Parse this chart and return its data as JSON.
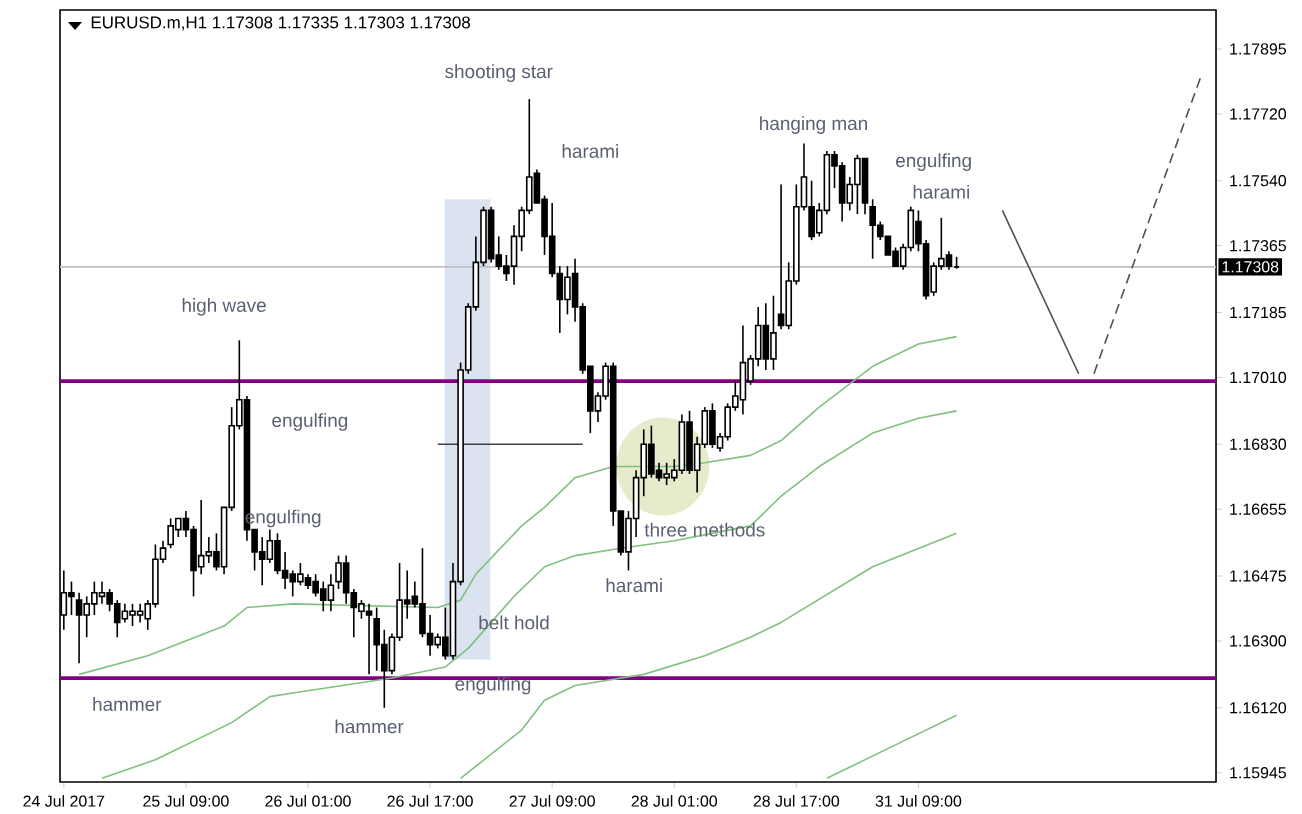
{
  "chart_data": {
    "type": "candlestick",
    "title": "EURUSD.m,H1 1.17308 1.17335 1.17303 1.17308",
    "categories": [
      "24 Jul 2017",
      null,
      null,
      null,
      null,
      null,
      null,
      null,
      null,
      null,
      null,
      null,
      null,
      null,
      null,
      null,
      "25 Jul 09:00",
      null,
      null,
      null,
      null,
      null,
      null,
      null,
      null,
      null,
      null,
      null,
      null,
      null,
      null,
      null,
      "26 Jul 01:00",
      null,
      null,
      null,
      null,
      null,
      null,
      null,
      null,
      null,
      null,
      null,
      null,
      null,
      null,
      null,
      "26 Jul 17:00",
      null,
      null,
      null,
      null,
      null,
      null,
      null,
      null,
      null,
      null,
      null,
      null,
      null,
      null,
      null,
      "27 Jul 09:00",
      null,
      null,
      null,
      null,
      null,
      null,
      null,
      null,
      null,
      null,
      null,
      null,
      null,
      null,
      null,
      "28 Jul 01:00",
      null,
      null,
      null,
      null,
      null,
      null,
      null,
      null,
      null,
      null,
      null,
      null,
      null,
      null,
      null,
      "28 Jul 17:00",
      null,
      null,
      null,
      null,
      null,
      null,
      null,
      null,
      null,
      null,
      null,
      null,
      null,
      null,
      null,
      "31 Jul 09:00",
      null,
      null,
      null,
      null,
      null,
      null,
      null,
      null,
      null,
      null,
      null,
      null,
      null,
      null,
      null,
      null,
      null,
      null,
      null,
      null,
      null,
      null,
      null,
      null,
      null,
      null,
      null,
      null,
      null,
      null,
      null,
      null,
      null,
      null,
      null,
      null,
      null
    ],
    "ohlc": [
      [
        1.1637,
        1.1649,
        1.1633,
        1.1643
      ],
      [
        1.1643,
        1.1646,
        1.1637,
        1.1642
      ],
      [
        1.1641,
        1.1643,
        1.1624,
        1.1637
      ],
      [
        1.1637,
        1.1642,
        1.1631,
        1.164
      ],
      [
        1.164,
        1.1646,
        1.1637,
        1.1643
      ],
      [
        1.1642,
        1.1646,
        1.164,
        1.1643
      ],
      [
        1.1643,
        1.1644,
        1.1638,
        1.164
      ],
      [
        1.164,
        1.1641,
        1.1631,
        1.1635
      ],
      [
        1.1636,
        1.164,
        1.1635,
        1.1638
      ],
      [
        1.1637,
        1.164,
        1.1634,
        1.1638
      ],
      [
        1.1637,
        1.164,
        1.1635,
        1.1638
      ],
      [
        1.1636,
        1.1641,
        1.1633,
        1.164
      ],
      [
        1.164,
        1.1656,
        1.1639,
        1.1652
      ],
      [
        1.1652,
        1.1657,
        1.1651,
        1.1655
      ],
      [
        1.1656,
        1.1663,
        1.1655,
        1.1661
      ],
      [
        1.166,
        1.1663,
        1.1658,
        1.1663
      ],
      [
        1.1663,
        1.1665,
        1.1658,
        1.166
      ],
      [
        1.166,
        1.1661,
        1.1642,
        1.1649
      ],
      [
        1.165,
        1.1668,
        1.1648,
        1.1653
      ],
      [
        1.1653,
        1.1658,
        1.1651,
        1.1654
      ],
      [
        1.1654,
        1.1659,
        1.1649,
        1.165
      ],
      [
        1.165,
        1.1666,
        1.1648,
        1.1666
      ],
      [
        1.1666,
        1.1693,
        1.1665,
        1.1688
      ],
      [
        1.1688,
        1.1711,
        1.1687,
        1.1695
      ],
      [
        1.1695,
        1.1696,
        1.1657,
        1.166
      ],
      [
        1.166,
        1.166,
        1.1649,
        1.1654
      ],
      [
        1.1654,
        1.1658,
        1.1645,
        1.1652
      ],
      [
        1.1652,
        1.166,
        1.1651,
        1.1657
      ],
      [
        1.1657,
        1.1659,
        1.1648,
        1.1649
      ],
      [
        1.1649,
        1.1654,
        1.1644,
        1.1647
      ],
      [
        1.1648,
        1.1649,
        1.1642,
        1.1646
      ],
      [
        1.1646,
        1.1651,
        1.1645,
        1.1648
      ],
      [
        1.1647,
        1.1648,
        1.1644,
        1.1645
      ],
      [
        1.1646,
        1.1648,
        1.1642,
        1.1643
      ],
      [
        1.1644,
        1.1646,
        1.1638,
        1.1641
      ],
      [
        1.1641,
        1.1648,
        1.1638,
        1.1645
      ],
      [
        1.1646,
        1.1653,
        1.1644,
        1.1651
      ],
      [
        1.1651,
        1.1653,
        1.164,
        1.1643
      ],
      [
        1.1643,
        1.1644,
        1.1631,
        1.1639
      ],
      [
        1.1638,
        1.1641,
        1.1636,
        1.164
      ],
      [
        1.1638,
        1.164,
        1.1621,
        1.1637
      ],
      [
        1.1636,
        1.1639,
        1.1622,
        1.1629
      ],
      [
        1.1629,
        1.1633,
        1.1612,
        1.1622
      ],
      [
        1.1622,
        1.1632,
        1.1621,
        1.1631
      ],
      [
        1.1631,
        1.1651,
        1.163,
        1.1641
      ],
      [
        1.1641,
        1.1649,
        1.1636,
        1.164
      ],
      [
        1.1642,
        1.1646,
        1.1639,
        1.164
      ],
      [
        1.164,
        1.1655,
        1.1631,
        1.1632
      ],
      [
        1.1632,
        1.1637,
        1.1626,
        1.1629
      ],
      [
        1.1629,
        1.1632,
        1.1628,
        1.1631
      ],
      [
        1.1631,
        1.1639,
        1.1625,
        1.1626
      ],
      [
        1.1626,
        1.1651,
        1.1625,
        1.1646
      ],
      [
        1.1646,
        1.1705,
        1.1645,
        1.1703
      ],
      [
        1.1703,
        1.1721,
        1.1702,
        1.172
      ],
      [
        1.172,
        1.1739,
        1.1719,
        1.1732
      ],
      [
        1.1732,
        1.1747,
        1.1731,
        1.1746
      ],
      [
        1.1746,
        1.1747,
        1.1732,
        1.1733
      ],
      [
        1.1734,
        1.1739,
        1.173,
        1.1731
      ],
      [
        1.1731,
        1.1734,
        1.1727,
        1.1729
      ],
      [
        1.1731,
        1.1742,
        1.1726,
        1.1739
      ],
      [
        1.1739,
        1.1747,
        1.1735,
        1.1746
      ],
      [
        1.1746,
        1.1776,
        1.1745,
        1.1755
      ],
      [
        1.1756,
        1.1757,
        1.1748,
        1.1748
      ],
      [
        1.1749,
        1.175,
        1.1734,
        1.1739
      ],
      [
        1.1739,
        1.1748,
        1.1728,
        1.1729
      ],
      [
        1.1729,
        1.1731,
        1.1713,
        1.1722
      ],
      [
        1.1722,
        1.1731,
        1.1718,
        1.1728
      ],
      [
        1.1729,
        1.1733,
        1.1716,
        1.172
      ],
      [
        1.172,
        1.1721,
        1.1702,
        1.1703
      ],
      [
        1.1704,
        1.1704,
        1.1686,
        1.1692
      ],
      [
        1.1692,
        1.1697,
        1.1689,
        1.1696
      ],
      [
        1.1696,
        1.1705,
        1.1695,
        1.1704
      ],
      [
        1.1704,
        1.1705,
        1.1661,
        1.1665
      ],
      [
        1.1665,
        1.1665,
        1.1653,
        1.1654
      ],
      [
        1.1654,
        1.1665,
        1.1649,
        1.1663
      ],
      [
        1.1663,
        1.1676,
        1.1658,
        1.1674
      ],
      [
        1.1674,
        1.1687,
        1.1669,
        1.1683
      ],
      [
        1.1683,
        1.1688,
        1.1674,
        1.1675
      ],
      [
        1.1676,
        1.1678,
        1.1673,
        1.1674
      ],
      [
        1.1674,
        1.1678,
        1.1672,
        1.1675
      ],
      [
        1.1674,
        1.1679,
        1.1673,
        1.1676
      ],
      [
        1.1676,
        1.1691,
        1.1675,
        1.1689
      ],
      [
        1.1689,
        1.1692,
        1.1675,
        1.1676
      ],
      [
        1.1676,
        1.1685,
        1.167,
        1.1683
      ],
      [
        1.1683,
        1.1693,
        1.1682,
        1.1692
      ],
      [
        1.1692,
        1.1694,
        1.1682,
        1.1683
      ],
      [
        1.1682,
        1.1686,
        1.1681,
        1.1685
      ],
      [
        1.1685,
        1.1694,
        1.1684,
        1.1693
      ],
      [
        1.1693,
        1.17,
        1.1692,
        1.1696
      ],
      [
        1.1695,
        1.1715,
        1.1691,
        1.1705
      ],
      [
        1.17,
        1.1707,
        1.1699,
        1.1706
      ],
      [
        1.1706,
        1.172,
        1.1704,
        1.1715
      ],
      [
        1.1715,
        1.1721,
        1.1703,
        1.1706
      ],
      [
        1.1706,
        1.1723,
        1.1703,
        1.1713
      ],
      [
        1.1718,
        1.1753,
        1.1714,
        1.1715
      ],
      [
        1.1715,
        1.1732,
        1.1714,
        1.1727
      ],
      [
        1.1727,
        1.1753,
        1.1726,
        1.1747
      ],
      [
        1.1747,
        1.1764,
        1.1746,
        1.1755
      ],
      [
        1.1747,
        1.1754,
        1.1738,
        1.1739
      ],
      [
        1.174,
        1.1748,
        1.1739,
        1.1746
      ],
      [
        1.1746,
        1.1762,
        1.1745,
        1.1761
      ],
      [
        1.1761,
        1.1762,
        1.1752,
        1.1758
      ],
      [
        1.1758,
        1.1759,
        1.1743,
        1.1748
      ],
      [
        1.1748,
        1.1755,
        1.1746,
        1.1753
      ],
      [
        1.1753,
        1.1761,
        1.1745,
        1.176
      ],
      [
        1.176,
        1.176,
        1.1745,
        1.1748
      ],
      [
        1.1747,
        1.1749,
        1.1733,
        1.1742
      ],
      [
        1.1742,
        1.1743,
        1.1738,
        1.1739
      ],
      [
        1.1739,
        1.1739,
        1.1734,
        1.1734
      ],
      [
        1.1735,
        1.1736,
        1.1731,
        1.1731
      ],
      [
        1.1731,
        1.1737,
        1.173,
        1.1736
      ],
      [
        1.1736,
        1.1747,
        1.1735,
        1.1746
      ],
      [
        1.1743,
        1.1746,
        1.1735,
        1.1737
      ],
      [
        1.1737,
        1.1738,
        1.1722,
        1.1723
      ],
      [
        1.1724,
        1.1732,
        1.1723,
        1.1731
      ],
      [
        1.1731,
        1.1744,
        1.173,
        1.1733
      ],
      [
        1.1734,
        1.1735,
        1.173,
        1.1731
      ],
      [
        1.17308,
        1.17335,
        1.17303,
        1.17308
      ],
      null,
      null,
      null,
      null,
      null,
      null,
      null,
      null,
      null,
      null,
      null,
      null,
      null,
      null,
      null,
      null,
      null,
      null,
      null,
      null,
      null,
      null,
      null,
      null,
      null,
      null,
      null,
      null,
      null,
      null,
      null,
      null
    ],
    "series": [
      {
        "type": "line",
        "color": "#80c080",
        "values": [
          null,
          null,
          1.1621,
          null,
          null,
          null,
          null,
          null,
          null,
          null,
          null,
          1.1626,
          null,
          null,
          null,
          null,
          null,
          null,
          null,
          null,
          null,
          1.1634,
          null,
          null,
          1.1639,
          null,
          null,
          null,
          null,
          null,
          1.164,
          null,
          null,
          null,
          null,
          null,
          null,
          null,
          null,
          null,
          null,
          null,
          null,
          null,
          null,
          null,
          null,
          null,
          null,
          1.1639,
          null,
          null,
          1.1641,
          null,
          1.1648,
          null,
          null,
          null,
          null,
          null,
          1.1661,
          null,
          null,
          1.1666,
          null,
          null,
          null,
          1.1674,
          null,
          null,
          null,
          null,
          1.1677,
          null,
          null,
          null,
          null,
          null,
          null,
          null,
          1.1677,
          null,
          null,
          null,
          1.1678,
          null,
          null,
          null,
          null,
          null,
          1.168,
          null,
          null,
          null,
          1.1684,
          null,
          null,
          null,
          null,
          1.1693,
          null,
          null,
          null,
          null,
          null,
          null,
          1.1704,
          null,
          null,
          null,
          null,
          null,
          1.171,
          null,
          null,
          null,
          null,
          1.1712,
          null,
          null,
          null,
          null,
          null,
          null,
          null,
          null,
          null,
          null,
          null,
          null,
          null,
          null,
          null,
          null,
          null,
          null,
          null,
          null,
          null,
          null,
          null,
          null,
          null,
          null,
          null,
          null,
          null,
          null,
          null,
          null
        ]
      },
      {
        "type": "line",
        "color": "#80c080",
        "values": [
          null,
          null,
          null,
          null,
          null,
          1.1593,
          null,
          null,
          null,
          null,
          null,
          null,
          1.1598,
          null,
          null,
          null,
          null,
          null,
          null,
          null,
          null,
          null,
          1.1608,
          null,
          null,
          null,
          null,
          1.1615,
          null,
          null,
          1.1616,
          null,
          null,
          null,
          null,
          null,
          null,
          null,
          null,
          null,
          null,
          null,
          null,
          1.162,
          null,
          null,
          null,
          null,
          null,
          null,
          1.1623,
          null,
          null,
          1.1628,
          null,
          null,
          null,
          null,
          null,
          1.1642,
          null,
          null,
          null,
          1.165,
          null,
          null,
          null,
          1.1653,
          null,
          null,
          null,
          null,
          null,
          1.1655,
          null,
          null,
          null,
          null,
          null,
          null,
          1.1657,
          null,
          null,
          null,
          null,
          null,
          null,
          null,
          null,
          null,
          1.1661,
          null,
          null,
          null,
          1.1669,
          null,
          null,
          null,
          null,
          1.1677,
          null,
          null,
          null,
          null,
          null,
          null,
          1.1686,
          null,
          null,
          null,
          null,
          null,
          1.169,
          null,
          null,
          null,
          null,
          1.1692,
          null,
          null,
          null,
          null,
          null,
          null,
          null,
          null,
          null,
          null,
          null,
          null,
          null,
          null,
          null,
          null,
          null,
          null,
          null,
          null,
          null,
          null,
          null,
          null,
          null,
          null,
          null,
          null,
          null,
          null,
          null,
          null
        ]
      },
      {
        "type": "line",
        "color": "#80c080",
        "values": [
          null,
          null,
          null,
          null,
          null,
          null,
          null,
          null,
          null,
          null,
          null,
          null,
          null,
          null,
          null,
          null,
          null,
          null,
          null,
          null,
          null,
          null,
          null,
          null,
          null,
          null,
          null,
          null,
          null,
          null,
          null,
          null,
          null,
          null,
          null,
          null,
          null,
          null,
          null,
          null,
          null,
          null,
          null,
          null,
          null,
          null,
          null,
          null,
          null,
          null,
          null,
          null,
          1.1593,
          null,
          null,
          null,
          null,
          null,
          null,
          null,
          1.1606,
          null,
          null,
          1.1614,
          null,
          null,
          null,
          1.1618,
          null,
          null,
          null,
          null,
          null,
          null,
          null,
          null,
          1.1621,
          null,
          null,
          null,
          null,
          null,
          null,
          null,
          1.1626,
          null,
          null,
          null,
          null,
          null,
          1.1631,
          null,
          null,
          null,
          1.1635,
          null,
          null,
          null,
          null,
          null,
          null,
          null,
          null,
          null,
          null,
          null,
          1.165,
          null,
          null,
          null,
          null,
          null,
          null,
          null,
          null,
          null,
          null,
          1.1659,
          null,
          null,
          null,
          null,
          null,
          null,
          null,
          null,
          null,
          null,
          null,
          null,
          null,
          null,
          null,
          null,
          null,
          null,
          null,
          null,
          null,
          null,
          null,
          null,
          null,
          null,
          null,
          null,
          null,
          null,
          null,
          null
        ]
      },
      {
        "type": "line",
        "color": "#80c080",
        "values": [
          null,
          null,
          null,
          null,
          null,
          null,
          null,
          null,
          null,
          null,
          null,
          null,
          null,
          null,
          null,
          null,
          null,
          null,
          null,
          null,
          null,
          null,
          null,
          null,
          null,
          null,
          null,
          null,
          null,
          null,
          null,
          null,
          null,
          null,
          null,
          null,
          null,
          null,
          null,
          null,
          null,
          null,
          null,
          null,
          null,
          null,
          null,
          null,
          null,
          null,
          null,
          null,
          null,
          null,
          null,
          null,
          null,
          null,
          null,
          null,
          null,
          null,
          null,
          null,
          null,
          null,
          null,
          null,
          null,
          null,
          null,
          null,
          null,
          null,
          null,
          null,
          null,
          null,
          null,
          null,
          null,
          null,
          null,
          null,
          null,
          null,
          null,
          null,
          null,
          null,
          null,
          null,
          null,
          null,
          null,
          null,
          null,
          null,
          null,
          null,
          1.1593,
          null,
          null,
          null,
          null,
          null,
          null,
          null,
          null,
          1.1602,
          null,
          null,
          null,
          null,
          null,
          null,
          null,
          1.161,
          null,
          null,
          null,
          null,
          null,
          null,
          null,
          null,
          null,
          null,
          null,
          null,
          null,
          null,
          null,
          null,
          null,
          null,
          null,
          null,
          null,
          null,
          null,
          null,
          null,
          null,
          null,
          null,
          null,
          null,
          null,
          null
        ]
      },
      {
        "type": "line",
        "color": "#404040",
        "values": [
          null,
          null,
          null,
          null,
          null,
          null,
          null,
          null,
          null,
          null,
          null,
          null,
          null,
          null,
          null,
          null,
          null,
          null,
          null,
          null,
          null,
          null,
          null,
          null,
          null,
          null,
          null,
          null,
          null,
          null,
          null,
          null,
          null,
          null,
          null,
          null,
          null,
          null,
          null,
          null,
          null,
          null,
          null,
          null,
          null,
          null,
          null,
          null,
          null,
          1.1683,
          null,
          null,
          null,
          null,
          null,
          null,
          null,
          null,
          null,
          null,
          null,
          null,
          null,
          null,
          null,
          null,
          null,
          null,
          1.1683,
          null,
          null,
          null,
          null,
          null,
          null,
          null,
          null,
          null,
          null,
          null,
          null,
          null,
          null,
          null,
          null,
          null,
          null,
          null,
          null,
          null,
          null,
          null,
          null,
          null,
          null,
          null,
          null,
          null,
          null,
          null,
          null,
          null,
          null,
          null,
          null,
          null,
          null,
          null,
          null,
          null,
          null,
          null,
          null,
          null,
          null,
          null,
          null,
          null,
          null,
          null,
          null,
          null,
          null,
          null,
          null,
          null,
          null,
          null,
          null,
          null,
          null,
          null,
          null,
          null,
          null,
          null,
          null,
          null,
          null,
          null,
          null,
          null,
          null,
          null,
          null,
          null,
          null,
          null,
          null,
          null
        ]
      },
      {
        "type": "line",
        "color": "#505050",
        "values": [
          null,
          null,
          null,
          null,
          null,
          null,
          null,
          null,
          null,
          null,
          null,
          null,
          null,
          null,
          null,
          null,
          null,
          null,
          null,
          null,
          null,
          null,
          null,
          null,
          null,
          null,
          null,
          null,
          null,
          null,
          null,
          null,
          null,
          null,
          null,
          null,
          null,
          null,
          null,
          null,
          null,
          null,
          null,
          null,
          null,
          null,
          null,
          null,
          null,
          null,
          null,
          null,
          null,
          null,
          null,
          null,
          null,
          null,
          null,
          null,
          null,
          null,
          null,
          null,
          null,
          null,
          null,
          null,
          null,
          null,
          null,
          null,
          null,
          null,
          null,
          null,
          null,
          null,
          null,
          null,
          null,
          null,
          null,
          null,
          null,
          null,
          null,
          null,
          null,
          null,
          null,
          null,
          null,
          null,
          null,
          null,
          null,
          null,
          null,
          null,
          null,
          null,
          null,
          null,
          null,
          null,
          null,
          null,
          null,
          null,
          null,
          null,
          null,
          null,
          null,
          null,
          null,
          null,
          null,
          null,
          null,
          null,
          null,
          1.1746,
          null,
          null,
          null,
          null,
          null,
          null,
          null,
          null,
          null,
          1.1702,
          null,
          null,
          null,
          null,
          null,
          null,
          null,
          null,
          null,
          null,
          null,
          null,
          null,
          null,
          null,
          null
        ]
      },
      {
        "type": "line",
        "color": "#505050",
        "line_style": "dashed",
        "values": [
          null,
          null,
          null,
          null,
          null,
          null,
          null,
          null,
          null,
          null,
          null,
          null,
          null,
          null,
          null,
          null,
          null,
          null,
          null,
          null,
          null,
          null,
          null,
          null,
          null,
          null,
          null,
          null,
          null,
          null,
          null,
          null,
          null,
          null,
          null,
          null,
          null,
          null,
          null,
          null,
          null,
          null,
          null,
          null,
          null,
          null,
          null,
          null,
          null,
          null,
          null,
          null,
          null,
          null,
          null,
          null,
          null,
          null,
          null,
          null,
          null,
          null,
          null,
          null,
          null,
          null,
          null,
          null,
          null,
          null,
          null,
          null,
          null,
          null,
          null,
          null,
          null,
          null,
          null,
          null,
          null,
          null,
          null,
          null,
          null,
          null,
          null,
          null,
          null,
          null,
          null,
          null,
          null,
          null,
          null,
          null,
          null,
          null,
          null,
          null,
          null,
          null,
          null,
          null,
          null,
          null,
          null,
          null,
          null,
          null,
          null,
          null,
          null,
          null,
          null,
          null,
          null,
          null,
          null,
          null,
          null,
          null,
          null,
          null,
          null,
          null,
          null,
          null,
          null,
          null,
          null,
          null,
          null,
          null,
          null,
          1.1702,
          null,
          null,
          null,
          null,
          null,
          null,
          null,
          null,
          null,
          null,
          null,
          null,
          null,
          1.1782
        ]
      }
    ],
    "ylim": [
      1.1592,
      1.18
    ],
    "yticks": [
      {
        "value": 1.15945,
        "label": "1.15945"
      },
      {
        "value": 1.1612,
        "label": "1.16120"
      },
      {
        "value": 1.163,
        "label": "1.16300"
      },
      {
        "value": 1.16475,
        "label": "1.16475"
      },
      {
        "value": 1.16655,
        "label": "1.16655"
      },
      {
        "value": 1.1683,
        "label": "1.16830"
      },
      {
        "value": 1.1701,
        "label": "1.17010"
      },
      {
        "value": 1.17185,
        "label": "1.17185"
      },
      {
        "value": 1.17365,
        "label": "1.17365"
      },
      {
        "value": 1.1754,
        "label": "1.17540"
      },
      {
        "value": 1.1772,
        "label": "1.17720"
      },
      {
        "value": 1.17895,
        "label": "1.17895"
      }
    ],
    "ref_lines": [
      {
        "axis": "y",
        "value": 1.17,
        "color": "#800080"
      },
      {
        "axis": "y",
        "value": 1.162,
        "color": "#800080"
      },
      {
        "axis": "y",
        "value": 1.17308,
        "label": "1.17308",
        "color": "#c0c0c0"
      }
    ],
    "annotations": [
      "high wave",
      "engulfing",
      "engulfing",
      "hammer",
      "hammer",
      "belt hold",
      "engulfing",
      "shooting star",
      "harami",
      "harami",
      "three methods",
      "hanging man",
      "engulfing",
      "harami"
    ]
  }
}
